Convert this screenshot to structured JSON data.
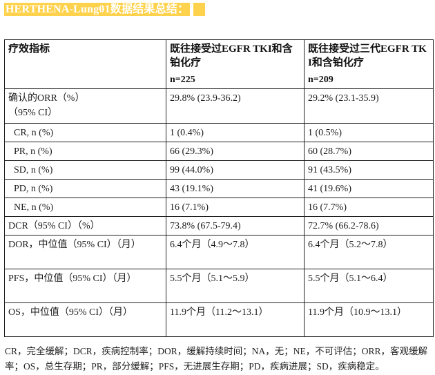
{
  "page": {
    "title": "HERTHENA-Lung01数据结果总结：",
    "highlight_color": "#FFD24D"
  },
  "table": {
    "header": {
      "col1": "疗效指标",
      "col2_title": "既往接受过EGFR TKI和含铂化疗",
      "col2_n": "n=225",
      "col3_title": "既往接受过三代EGFR TKI和含铂化疗",
      "col3_n": "n=209"
    },
    "rows": [
      {
        "label": "确认的ORR（%）\n（95% CI）",
        "v1": "29.8% (23.9-36.2)",
        "v2": "29.2% (23.1-35.9)"
      },
      {
        "label": "CR, n (%)",
        "v1": "1 (0.4%)",
        "v2": "1 (0.5%)"
      },
      {
        "label": "PR, n (%)",
        "v1": "66 (29.3%)",
        "v2": "60 (28.7%)"
      },
      {
        "label": "SD, n (%)",
        "v1": "99 (44.0%)",
        "v2": "91 (43.5%)"
      },
      {
        "label": "PD, n (%)",
        "v1": "43 (19.1%)",
        "v2": "41 (19.6%)"
      },
      {
        "label": "NE, n (%)",
        "v1": "16 (7.1%)",
        "v2": "16 (7.7%)"
      },
      {
        "label": "DCR（95% CI）（%）",
        "v1": "73.8% (67.5-79.4)",
        "v2": "72.7% (66.2-78.6)"
      },
      {
        "label": "DOR，中位值（95% CI）（月）",
        "v1": "6.4个月（4.9～7.8）",
        "v2": "6.4个月（5.2～7.8）"
      },
      {
        "label": "PFS，中位值（95% CI）（月）",
        "v1": "5.5个月（5.1～5.9）",
        "v2": "5.5个月（5.1～6.4）"
      },
      {
        "label": "OS，中位值（95% CI）（月）",
        "v1": "11.9个月（11.2～13.1）",
        "v2": "11.9个月（10.9～13.1）"
      }
    ]
  },
  "footnote": "CR，完全缓解；DCR，疾病控制率；DOR，缓解持续时间；NA，无；NE，不可评估；ORR，客观缓解率；OS，总生存期；PR，部分缓解；PFS，无进展生存期；PD，疾病进展；SD，疾病稳定。"
}
